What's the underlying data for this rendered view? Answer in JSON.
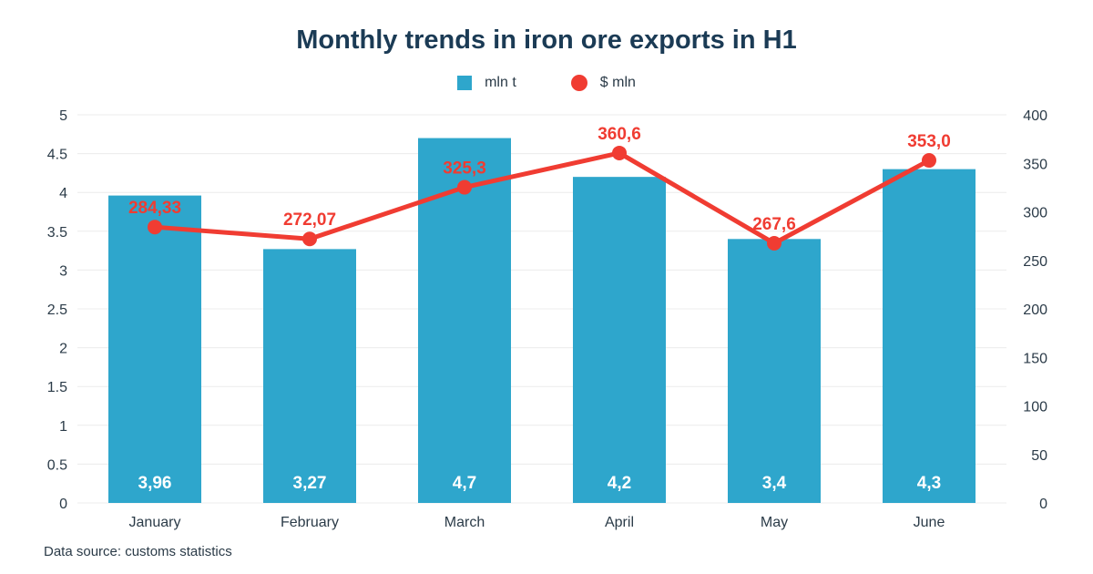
{
  "chart_data": {
    "type": "bar",
    "title": "Monthly trends in iron ore exports in H1",
    "categories": [
      "January",
      "February",
      "March",
      "April",
      "May",
      "June"
    ],
    "series": [
      {
        "name": "mln t",
        "type": "bar",
        "axis": "left",
        "values": [
          3.96,
          3.27,
          4.7,
          4.2,
          3.4,
          4.3
        ],
        "labels": [
          "3,96",
          "3,27",
          "4,7",
          "4,2",
          "3,4",
          "4,3"
        ]
      },
      {
        "name": "$ mln",
        "type": "line",
        "axis": "right",
        "values": [
          284.33,
          272.07,
          325.3,
          360.6,
          267.6,
          353.0
        ],
        "labels": [
          "284,33",
          "272,07",
          "325,3",
          "360,6",
          "267,6",
          "353,0"
        ]
      }
    ],
    "y_left": {
      "ylim": [
        0,
        5
      ],
      "ticks": [
        "0",
        "0.5",
        "1",
        "1.5",
        "2",
        "2.5",
        "3",
        "3.5",
        "4",
        "4.5",
        "5"
      ]
    },
    "y_right": {
      "ylim": [
        0,
        400
      ],
      "ticks": [
        "0",
        "50",
        "100",
        "150",
        "200",
        "250",
        "300",
        "350",
        "400"
      ]
    },
    "grid": true,
    "legend_position": "top-center",
    "colors": {
      "bar": "#2ea6cc",
      "line": "#f03c32",
      "grid": "#ececec",
      "title": "#1b3b55"
    }
  },
  "source": "Data source: customs statistics"
}
